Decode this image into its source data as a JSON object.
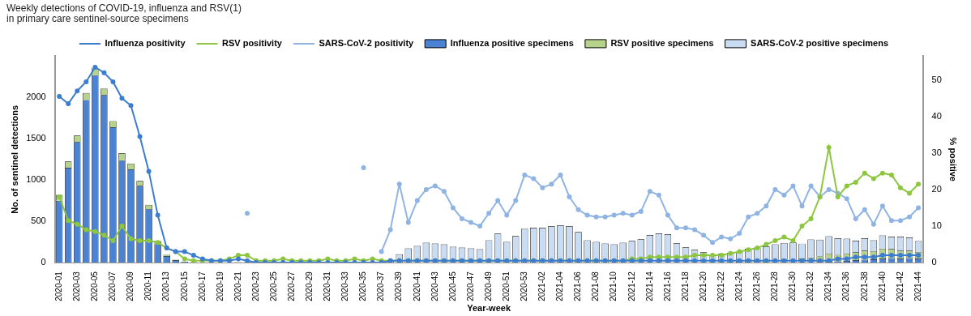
{
  "chart_data": {
    "type": "bar",
    "title": [
      "Weekly detections of COVID-19, influenza and RSV(1)",
      "in primary care sentinel-source specimens"
    ],
    "x_label": "Year-week",
    "y_label": "No. of sentinel detections",
    "y2_label": "% positive",
    "stacked": true,
    "grid": false,
    "legend": "top",
    "ylim": [
      0,
      2500
    ],
    "yticks": [
      0,
      500,
      1000,
      1500,
      2000
    ],
    "y2lim": [
      0,
      56.5
    ],
    "y2ticks": [
      0,
      10,
      20,
      30,
      40,
      50
    ],
    "categories": [
      "2020-01",
      null,
      "2020-03",
      null,
      "2020-05",
      null,
      "2020-07",
      null,
      "2020-09",
      null,
      "2020-11",
      null,
      "2020-13",
      null,
      "2020-15",
      null,
      "2020-17",
      null,
      "2020-19",
      null,
      "2020-21",
      null,
      "2020-23",
      null,
      "2020-25",
      null,
      "2020-27",
      null,
      "2020-29",
      null,
      "2020-31",
      null,
      "2020-33",
      null,
      "2020-35",
      null,
      "2020-37",
      null,
      "2020-39",
      null,
      "2020-41",
      null,
      "2020-43",
      null,
      "2020-45",
      null,
      "2020-47",
      null,
      "2020-49",
      null,
      "2020-51",
      null,
      "2020-53",
      null,
      "2021-02",
      null,
      "2021-04",
      null,
      "2021-06",
      null,
      "2021-08",
      null,
      "2021-10",
      null,
      "2021-12",
      null,
      "2021-14",
      null,
      "2021-16",
      null,
      "2021-18",
      null,
      "2021-20",
      null,
      "2021-22",
      null,
      "2021-24",
      null,
      "2021-26",
      null,
      "2021-28",
      null,
      "2021-30",
      null,
      "2021-32",
      null,
      "2021-34",
      null,
      "2021-36",
      null,
      "2021-38",
      null,
      "2021-40",
      null,
      "2021-42",
      null,
      "2021-44"
    ],
    "series": [
      {
        "name": "Influenza positivity",
        "type": "line",
        "axis": "y2",
        "marker": "circle",
        "color": "#3c7dd0",
        "values": [
          45.5,
          43.5,
          47,
          49.5,
          53.5,
          52,
          49.5,
          45,
          43,
          34.5,
          25,
          13,
          4,
          3,
          3,
          2,
          1,
          0.5,
          0.5,
          0.5,
          1,
          0.5,
          0,
          0,
          0,
          0,
          0,
          0,
          0,
          0,
          0,
          0,
          0,
          0,
          0,
          0,
          0,
          0.5,
          0.5,
          0.5,
          0.5,
          0.5,
          0.5,
          0.5,
          0.5,
          0.5,
          0.5,
          0.5,
          0.5,
          0.5,
          0.5,
          0.5,
          0.5,
          0.5,
          0.5,
          0.5,
          0.5,
          0.5,
          0.5,
          0.5,
          0.5,
          0.5,
          0.5,
          0.5,
          0.5,
          0.5,
          0.5,
          0.5,
          0.5,
          0.5,
          0.5,
          0.5,
          0.5,
          0.5,
          0.5,
          0.5,
          0.5,
          0.5,
          0.5,
          0.5,
          0.5,
          0.5,
          0.5,
          0.5,
          0.5,
          0.5,
          0.5,
          1,
          1,
          1.5,
          1.5,
          1.5,
          2,
          2,
          2,
          2,
          2
        ]
      },
      {
        "name": "RSV positivity",
        "type": "line",
        "axis": "y2",
        "marker": "circle",
        "color": "#8dc63f",
        "values": [
          18,
          11.5,
          10.5,
          9,
          8.5,
          7.5,
          6,
          10,
          6.5,
          6,
          6,
          5.5,
          4,
          3,
          1,
          0.5,
          0.5,
          0.5,
          0.5,
          1,
          2,
          2,
          0.5,
          0.5,
          0.5,
          1,
          0.5,
          0.5,
          0.5,
          0.5,
          1,
          0.5,
          0.5,
          1,
          0.5,
          1,
          0.5,
          0.5,
          0.5,
          0.5,
          0.5,
          0.5,
          0.5,
          0.5,
          0.5,
          0.5,
          0.5,
          0.5,
          0.5,
          0.5,
          0.5,
          0.5,
          0.5,
          0.5,
          0.5,
          0.5,
          0.5,
          0.5,
          0.5,
          0.5,
          0.5,
          0.5,
          0.5,
          0.5,
          1,
          1,
          1.5,
          1.5,
          1.5,
          1.5,
          1.5,
          2,
          2,
          2,
          2,
          2.5,
          3,
          3.5,
          4,
          5,
          6,
          7,
          6,
          10,
          12,
          18,
          31.5,
          18,
          21,
          22,
          24.5,
          23,
          24.5,
          24,
          20.5,
          19,
          21.5
        ]
      },
      {
        "name": "SARS-CoV-2 positivity",
        "type": "line",
        "axis": "y2",
        "marker": "circle",
        "color": "#8fb4e3",
        "values": [
          null,
          null,
          null,
          null,
          null,
          null,
          null,
          null,
          null,
          null,
          null,
          null,
          null,
          null,
          null,
          null,
          null,
          null,
          null,
          null,
          null,
          13.5,
          null,
          null,
          null,
          null,
          null,
          null,
          null,
          null,
          null,
          null,
          null,
          null,
          26,
          null,
          3,
          9,
          21.5,
          11,
          17,
          20,
          21,
          19.5,
          15,
          12,
          11,
          10,
          13.5,
          17,
          13,
          17,
          24,
          23,
          20.5,
          21.5,
          24,
          18,
          14.5,
          13,
          12.5,
          12.5,
          13,
          13.5,
          13,
          14,
          19.5,
          18.5,
          13,
          9.5,
          9.5,
          9,
          7.5,
          5.5,
          7,
          6.5,
          8,
          12.5,
          13.5,
          15.5,
          20,
          18.5,
          21,
          15.5,
          21,
          18,
          20,
          19,
          17.5,
          12,
          14.5,
          10.5,
          15.5,
          11.5,
          11.5,
          12.5,
          15
        ]
      },
      {
        "name": "Influenza positive specimens",
        "type": "bar",
        "color": "#4a82d4",
        "values": [
          750,
          1150,
          1460,
          1970,
          2270,
          2030,
          1640,
          1240,
          1130,
          930,
          650,
          230,
          80,
          30,
          10,
          5,
          3,
          2,
          2,
          1,
          2,
          1,
          0,
          0,
          0,
          0,
          0,
          0,
          0,
          0,
          0,
          0,
          0,
          0,
          0,
          0,
          0,
          1,
          1,
          1,
          1,
          1,
          1,
          1,
          1,
          1,
          1,
          1,
          1,
          1,
          1,
          1,
          1,
          1,
          1,
          1,
          1,
          1,
          1,
          1,
          1,
          1,
          1,
          1,
          1,
          1,
          1,
          1,
          1,
          1,
          1,
          1,
          1,
          1,
          1,
          1,
          1,
          2,
          2,
          2,
          3,
          3,
          4,
          5,
          6,
          8,
          10,
          15,
          20,
          30,
          35,
          40,
          50,
          55,
          50,
          55,
          50
        ]
      },
      {
        "name": "RSV positive specimens",
        "type": "bar",
        "color": "#b5d38a",
        "values": [
          70,
          75,
          80,
          85,
          85,
          80,
          75,
          85,
          70,
          60,
          50,
          30,
          15,
          5,
          2,
          1,
          1,
          1,
          2,
          3,
          3,
          2,
          1,
          1,
          1,
          2,
          1,
          1,
          1,
          1,
          2,
          1,
          1,
          2,
          1,
          1,
          1,
          1,
          1,
          1,
          1,
          1,
          1,
          1,
          1,
          1,
          1,
          1,
          1,
          1,
          1,
          1,
          1,
          1,
          1,
          1,
          1,
          1,
          1,
          1,
          1,
          1,
          1,
          1,
          2,
          2,
          3,
          3,
          3,
          3,
          3,
          4,
          4,
          5,
          6,
          8,
          10,
          15,
          20,
          25,
          30,
          35,
          30,
          45,
          55,
          70,
          100,
          80,
          90,
          95,
          110,
          100,
          120,
          110,
          95,
          90,
          80
        ]
      },
      {
        "name": "SARS-CoV-2 positive specimens",
        "type": "bar",
        "color": "#c9dcf2",
        "values": [
          0,
          0,
          0,
          0,
          0,
          0,
          0,
          0,
          0,
          0,
          0,
          0,
          0,
          0,
          0,
          0,
          0,
          0,
          0,
          0,
          0,
          5,
          0,
          0,
          0,
          0,
          0,
          0,
          0,
          0,
          0,
          0,
          0,
          0,
          3,
          0,
          5,
          20,
          100,
          170,
          200,
          240,
          230,
          220,
          190,
          180,
          170,
          160,
          270,
          350,
          250,
          320,
          410,
          420,
          420,
          440,
          450,
          440,
          370,
          270,
          250,
          230,
          220,
          240,
          260,
          280,
          330,
          350,
          340,
          230,
          180,
          150,
          120,
          90,
          100,
          110,
          120,
          150,
          160,
          170,
          190,
          200,
          210,
          180,
          220,
          200,
          210,
          200,
          180,
          140,
          150,
          130,
          160,
          150,
          170,
          160,
          130
        ]
      }
    ]
  }
}
